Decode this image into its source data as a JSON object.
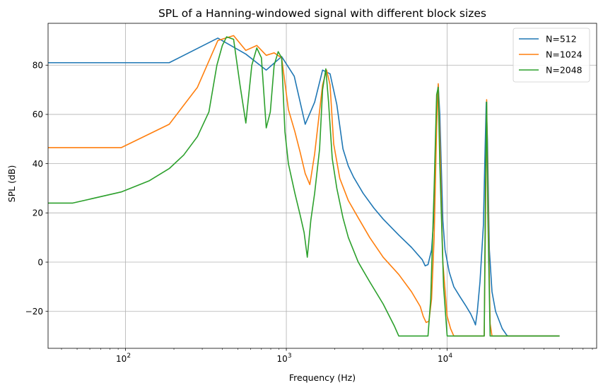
{
  "chart_data": {
    "type": "line",
    "title": "SPL of a Hanning-windowed signal with different block sizes",
    "xlabel": "Frequency (Hz)",
    "ylabel": "SPL (dB)",
    "xscale": "log",
    "xlim": [
      33,
      85000
    ],
    "ylim": [
      -35,
      97
    ],
    "grid": true,
    "legend_position": "top-right",
    "x_ticks": [
      {
        "value": 100,
        "base": "10",
        "exp": "2"
      },
      {
        "value": 1000,
        "base": "10",
        "exp": "3"
      },
      {
        "value": 10000,
        "base": "10",
        "exp": "4"
      }
    ],
    "y_ticks": [
      {
        "value": -20,
        "label": "−20"
      },
      {
        "value": 0,
        "label": "0"
      },
      {
        "value": 20,
        "label": "20"
      },
      {
        "value": 40,
        "label": "40"
      },
      {
        "value": 60,
        "label": "60"
      },
      {
        "value": 80,
        "label": "80"
      }
    ],
    "series": [
      {
        "name": "N=512",
        "color": "#1f77b4",
        "points": [
          [
            33,
            81
          ],
          [
            187,
            81
          ],
          [
            375,
            91
          ],
          [
            560,
            84.5
          ],
          [
            750,
            78
          ],
          [
            935,
            83.5
          ],
          [
            1120,
            75.5
          ],
          [
            1310,
            56
          ],
          [
            1500,
            65
          ],
          [
            1680,
            78
          ],
          [
            1870,
            76.5
          ],
          [
            2060,
            64
          ],
          [
            2250,
            46
          ],
          [
            2430,
            39
          ],
          [
            2620,
            34.5
          ],
          [
            3000,
            28
          ],
          [
            3500,
            22
          ],
          [
            4000,
            17.5
          ],
          [
            5000,
            11
          ],
          [
            6000,
            6
          ],
          [
            7000,
            1
          ],
          [
            7300,
            -1.5
          ],
          [
            7600,
            -1
          ],
          [
            8000,
            5
          ],
          [
            8300,
            20
          ],
          [
            8600,
            65
          ],
          [
            8800,
            72
          ],
          [
            9000,
            60
          ],
          [
            9400,
            17
          ],
          [
            9700,
            5
          ],
          [
            10300,
            -4
          ],
          [
            11000,
            -10
          ],
          [
            12000,
            -14
          ],
          [
            13000,
            -17.5
          ],
          [
            14000,
            -21
          ],
          [
            14700,
            -24
          ],
          [
            15000,
            -25.5
          ],
          [
            15400,
            -20
          ],
          [
            16000,
            -8
          ],
          [
            16800,
            15
          ],
          [
            17200,
            45
          ],
          [
            17500,
            65
          ],
          [
            17800,
            50
          ],
          [
            18300,
            5
          ],
          [
            19000,
            -12
          ],
          [
            20000,
            -20
          ],
          [
            22000,
            -27
          ],
          [
            23500,
            -29.7
          ],
          [
            24000,
            -30
          ],
          [
            50000,
            -30
          ]
        ]
      },
      {
        "name": "N=1024",
        "color": "#ff7f0e",
        "points": [
          [
            33,
            46.5
          ],
          [
            94,
            46.5
          ],
          [
            187,
            56
          ],
          [
            280,
            71
          ],
          [
            375,
            90
          ],
          [
            470,
            92
          ],
          [
            560,
            86
          ],
          [
            655,
            88
          ],
          [
            750,
            84
          ],
          [
            840,
            85
          ],
          [
            935,
            83
          ],
          [
            1030,
            62
          ],
          [
            1130,
            53
          ],
          [
            1220,
            44.5
          ],
          [
            1310,
            36
          ],
          [
            1400,
            31.5
          ],
          [
            1500,
            44
          ],
          [
            1680,
            72
          ],
          [
            1780,
            78
          ],
          [
            1870,
            72
          ],
          [
            1970,
            48
          ],
          [
            2150,
            34
          ],
          [
            2430,
            25
          ],
          [
            2800,
            18
          ],
          [
            3300,
            10
          ],
          [
            4000,
            2
          ],
          [
            5000,
            -5
          ],
          [
            6000,
            -12
          ],
          [
            6800,
            -18
          ],
          [
            7100,
            -22
          ],
          [
            7400,
            -24.5
          ],
          [
            7700,
            -24
          ],
          [
            8000,
            -15
          ],
          [
            8300,
            10
          ],
          [
            8600,
            55
          ],
          [
            8800,
            72.5
          ],
          [
            9000,
            50
          ],
          [
            9400,
            0
          ],
          [
            10000,
            -22
          ],
          [
            10500,
            -27
          ],
          [
            11000,
            -30
          ],
          [
            17000,
            -30
          ],
          [
            17400,
            30
          ],
          [
            17600,
            66
          ],
          [
            17900,
            30
          ],
          [
            18500,
            -25
          ],
          [
            19000,
            -30
          ],
          [
            50000,
            -30
          ]
        ]
      },
      {
        "name": "N=2048",
        "color": "#2ca02c",
        "points": [
          [
            33,
            24
          ],
          [
            47,
            24
          ],
          [
            94,
            28.5
          ],
          [
            140,
            33
          ],
          [
            187,
            38
          ],
          [
            230,
            43.5
          ],
          [
            280,
            51
          ],
          [
            330,
            61
          ],
          [
            370,
            80
          ],
          [
            400,
            88
          ],
          [
            425,
            91.5
          ],
          [
            470,
            90.5
          ],
          [
            515,
            72
          ],
          [
            560,
            56.5
          ],
          [
            610,
            80
          ],
          [
            655,
            87
          ],
          [
            700,
            83
          ],
          [
            750,
            54.5
          ],
          [
            795,
            61
          ],
          [
            840,
            80
          ],
          [
            890,
            85.5
          ],
          [
            935,
            83
          ],
          [
            980,
            53
          ],
          [
            1030,
            40
          ],
          [
            1130,
            28
          ],
          [
            1220,
            19
          ],
          [
            1290,
            12
          ],
          [
            1350,
            2
          ],
          [
            1420,
            17
          ],
          [
            1500,
            28
          ],
          [
            1610,
            46
          ],
          [
            1680,
            70
          ],
          [
            1760,
            78.5
          ],
          [
            1830,
            65
          ],
          [
            1930,
            42
          ],
          [
            2060,
            30
          ],
          [
            2250,
            18
          ],
          [
            2430,
            10
          ],
          [
            2800,
            0
          ],
          [
            3300,
            -8
          ],
          [
            4000,
            -17
          ],
          [
            4700,
            -26
          ],
          [
            5000,
            -30
          ],
          [
            7600,
            -30
          ],
          [
            7900,
            -15
          ],
          [
            8300,
            30
          ],
          [
            8600,
            68
          ],
          [
            8800,
            71
          ],
          [
            9000,
            40
          ],
          [
            9500,
            -10
          ],
          [
            10000,
            -30
          ],
          [
            17000,
            -30
          ],
          [
            17300,
            30
          ],
          [
            17600,
            65
          ],
          [
            17900,
            20
          ],
          [
            18500,
            -30
          ],
          [
            50000,
            -30
          ]
        ]
      }
    ]
  }
}
